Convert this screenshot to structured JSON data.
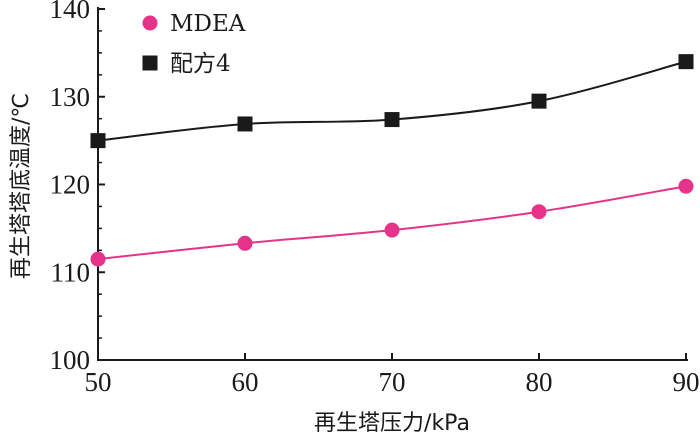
{
  "chart_data": {
    "type": "line",
    "xlabel": "再生塔压力/kPa",
    "ylabel": "再生塔塔底温度/℃",
    "x": [
      50,
      60,
      70,
      80,
      90
    ],
    "xlim": [
      50,
      90
    ],
    "ylim": [
      100,
      140
    ],
    "xticks": [
      50,
      60,
      70,
      80,
      90
    ],
    "yticks": [
      100,
      110,
      120,
      130,
      140
    ],
    "grid": false,
    "legend_position": "top-left",
    "series": [
      {
        "name": "MDEA",
        "marker": "circle",
        "color": "#e6338a",
        "values": [
          111.5,
          113.3,
          114.8,
          116.9,
          119.8
        ]
      },
      {
        "name": "配方4",
        "marker": "square",
        "color": "#1a1a1a",
        "values": [
          125.0,
          126.9,
          127.4,
          129.5,
          134.0
        ]
      }
    ]
  }
}
